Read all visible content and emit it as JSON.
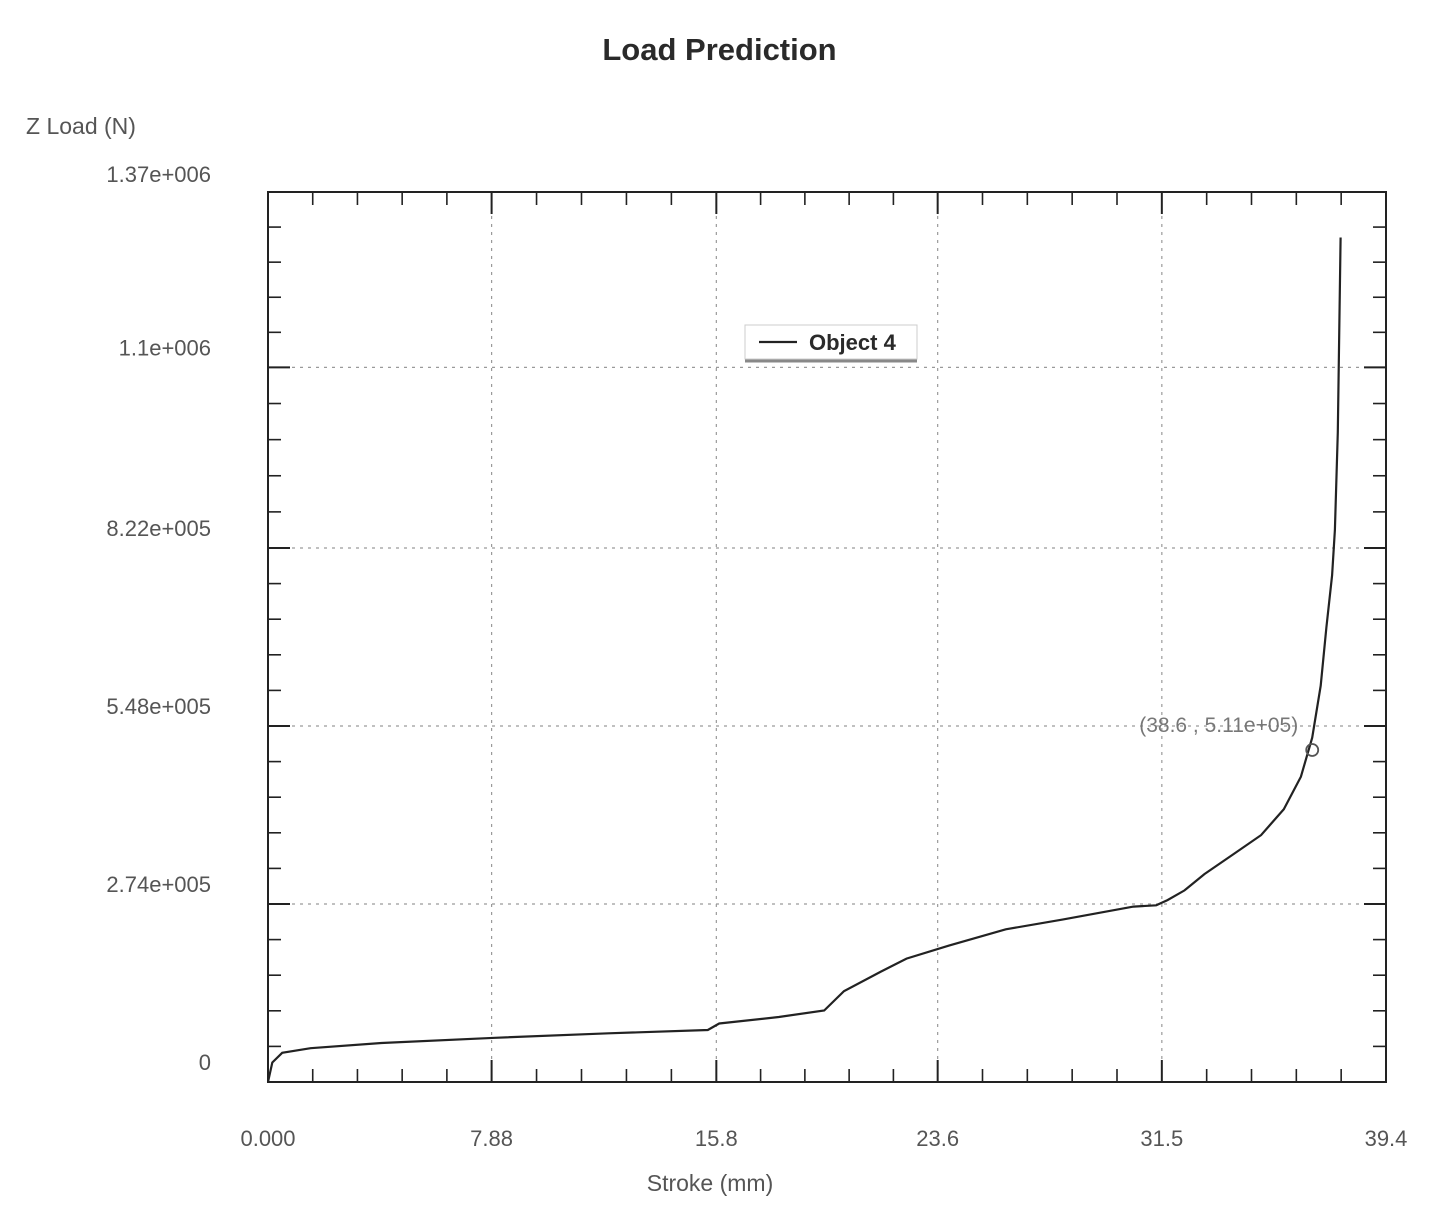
{
  "chart_data": {
    "type": "line",
    "title": "Load Prediction",
    "xlabel": "Stroke (mm)",
    "ylabel": "Z Load (N)",
    "xlim": [
      0,
      39.4
    ],
    "ylim": [
      0,
      1370000
    ],
    "x_ticks": [
      "0.000",
      "7.88",
      "15.8",
      "23.6",
      "31.5",
      "39.4"
    ],
    "x_tick_values": [
      0,
      7.88,
      15.8,
      23.6,
      31.5,
      39.4
    ],
    "y_ticks": [
      "0",
      "2.74e+005",
      "5.48e+005",
      "8.22e+005",
      "1.1e+006",
      "1.37e+006"
    ],
    "y_tick_values": [
      0,
      274000,
      548000,
      822000,
      1100000,
      1370000
    ],
    "grid": true,
    "legend_position": "upper-center",
    "series": [
      {
        "name": "Object 4",
        "x": [
          0,
          0.15,
          0.5,
          1.5,
          4,
          8,
          12,
          15.5,
          15.9,
          18,
          19.6,
          20.3,
          21.6,
          22.5,
          24,
          26,
          28,
          30.5,
          31.3,
          31.7,
          32.3,
          33,
          34,
          35,
          35.8,
          36.4,
          36.8,
          37.1,
          37.3,
          37.5,
          37.6,
          37.7,
          37.75,
          37.8
        ],
        "y": [
          0,
          30000,
          45000,
          52000,
          60000,
          68000,
          75000,
          80000,
          90000,
          100000,
          110000,
          140000,
          170000,
          190000,
          210000,
          235000,
          250000,
          270000,
          272000,
          280000,
          295000,
          320000,
          350000,
          380000,
          420000,
          470000,
          530000,
          610000,
          700000,
          780000,
          850000,
          1000000,
          1150000,
          1300000
        ]
      }
    ],
    "annotation": {
      "label": "(38.6 , 5.11e+05)",
      "x": 36.8,
      "y": 511000
    }
  }
}
